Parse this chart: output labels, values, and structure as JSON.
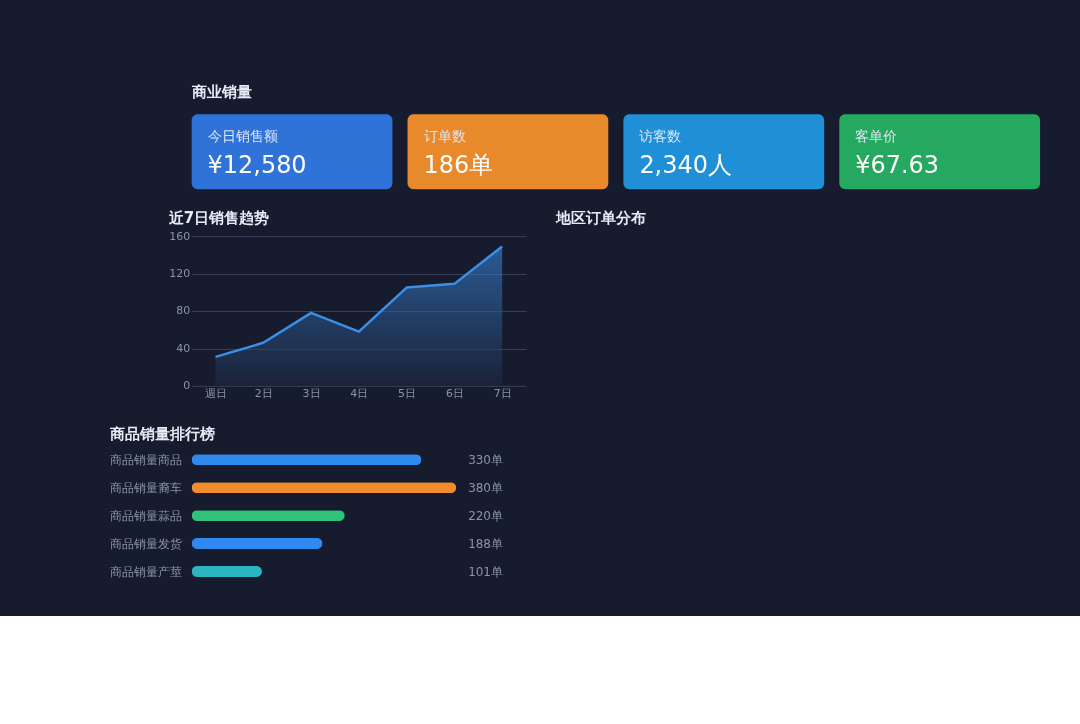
{
  "chart_data": [
    {
      "type": "other",
      "title": "商业销量",
      "annotations": [
        "今日销售额",
        "¥12,580",
        "订单数",
        "186单",
        "访客数",
        "2,340人",
        "客单价",
        "¥67.63"
      ],
      "colors": [
        "#2f72d8",
        "#e8892c",
        "#1f8fd8",
        "#25a85f"
      ]
    },
    {
      "type": "area",
      "title": "近7日销售趋势",
      "categories": [
        "週日",
        "2日",
        "3日",
        "4日",
        "5日",
        "6日",
        "7日"
      ],
      "series": [
        {
          "color": "#3b8fe8",
          "values": [
            31,
            46,
            78,
            58,
            105,
            109,
            149
          ]
        }
      ],
      "ylim": [
        0,
        160
      ],
      "yticks": [
        0,
        40,
        80,
        120,
        160
      ],
      "grid": "y"
    },
    {
      "type": "bar",
      "orientation": "horizontal",
      "title": "商品销量排行榜",
      "categories": [
        "商品销量商品",
        "商品销量裔车",
        "商品销量蒜品",
        "商品销量发货",
        "商品销量产莖"
      ],
      "values": [
        330,
        380,
        220,
        188,
        101
      ],
      "colors": [
        "#2f8af0",
        "#f28a2e",
        "#2ec27a",
        "#2f8af0",
        "#2bb5c0"
      ],
      "value_labels": [
        "330单",
        "380单",
        "220单",
        "188单",
        "101单"
      ]
    },
    {
      "type": "other",
      "title": "地区订单分布"
    }
  ]
}
